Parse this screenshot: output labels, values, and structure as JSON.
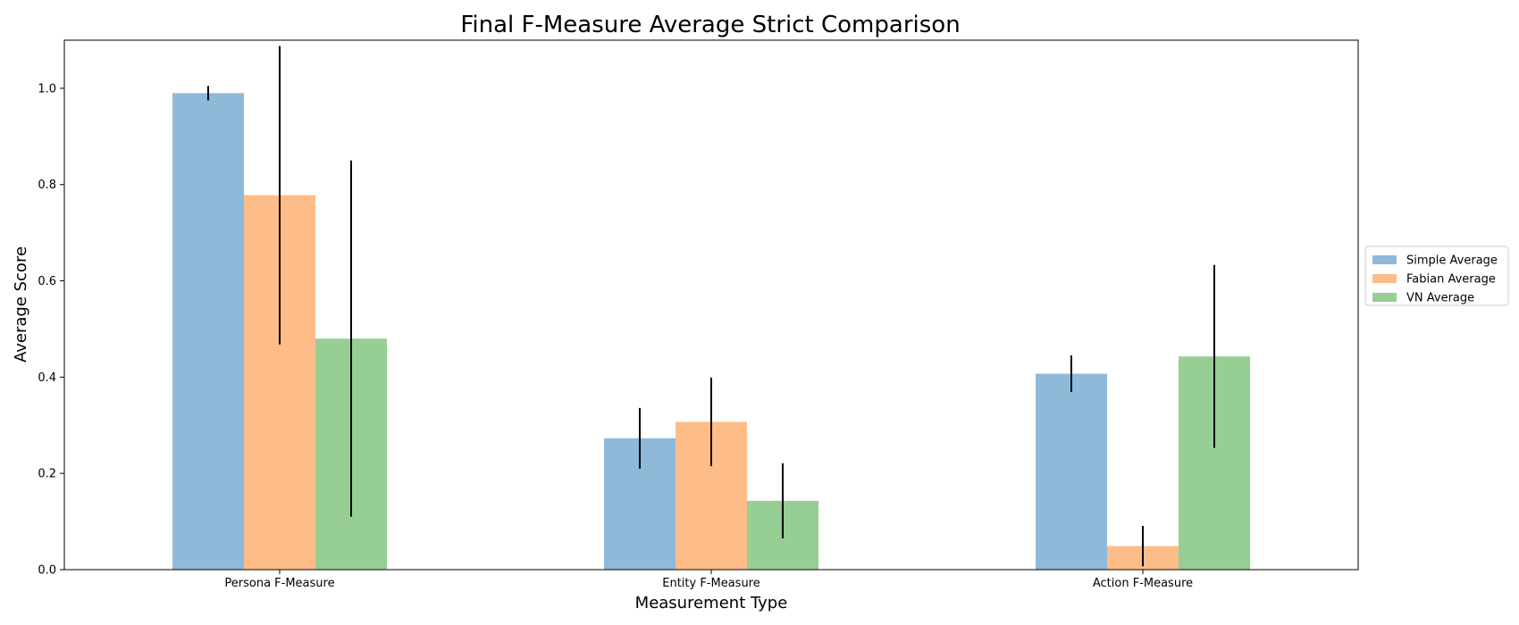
{
  "chart_data": {
    "type": "bar",
    "title": "Final F-Measure Average Strict Comparison",
    "xlabel": "Measurement Type",
    "ylabel": "Average Score",
    "categories": [
      "Persona F-Measure",
      "Entity F-Measure",
      "Action F-Measure"
    ],
    "ylim": [
      0,
      1.1
    ],
    "yticks": [
      "0.0",
      "0.2",
      "0.4",
      "0.6",
      "0.8",
      "1.0"
    ],
    "grid": false,
    "legend_position": "right-center",
    "series": [
      {
        "name": "Simple Average",
        "color": "#8fb9d9",
        "values": [
          0.99,
          0.273,
          0.407
        ],
        "errors": [
          0.015,
          0.063,
          0.038
        ]
      },
      {
        "name": "Fabian Average",
        "color": "#febd88",
        "values": [
          0.778,
          0.307,
          0.049
        ],
        "errors": [
          0.31,
          0.092,
          0.042
        ]
      },
      {
        "name": "VN Average",
        "color": "#96ce94",
        "values": [
          0.48,
          0.143,
          0.443
        ],
        "errors": [
          0.37,
          0.078,
          0.19
        ]
      }
    ]
  }
}
